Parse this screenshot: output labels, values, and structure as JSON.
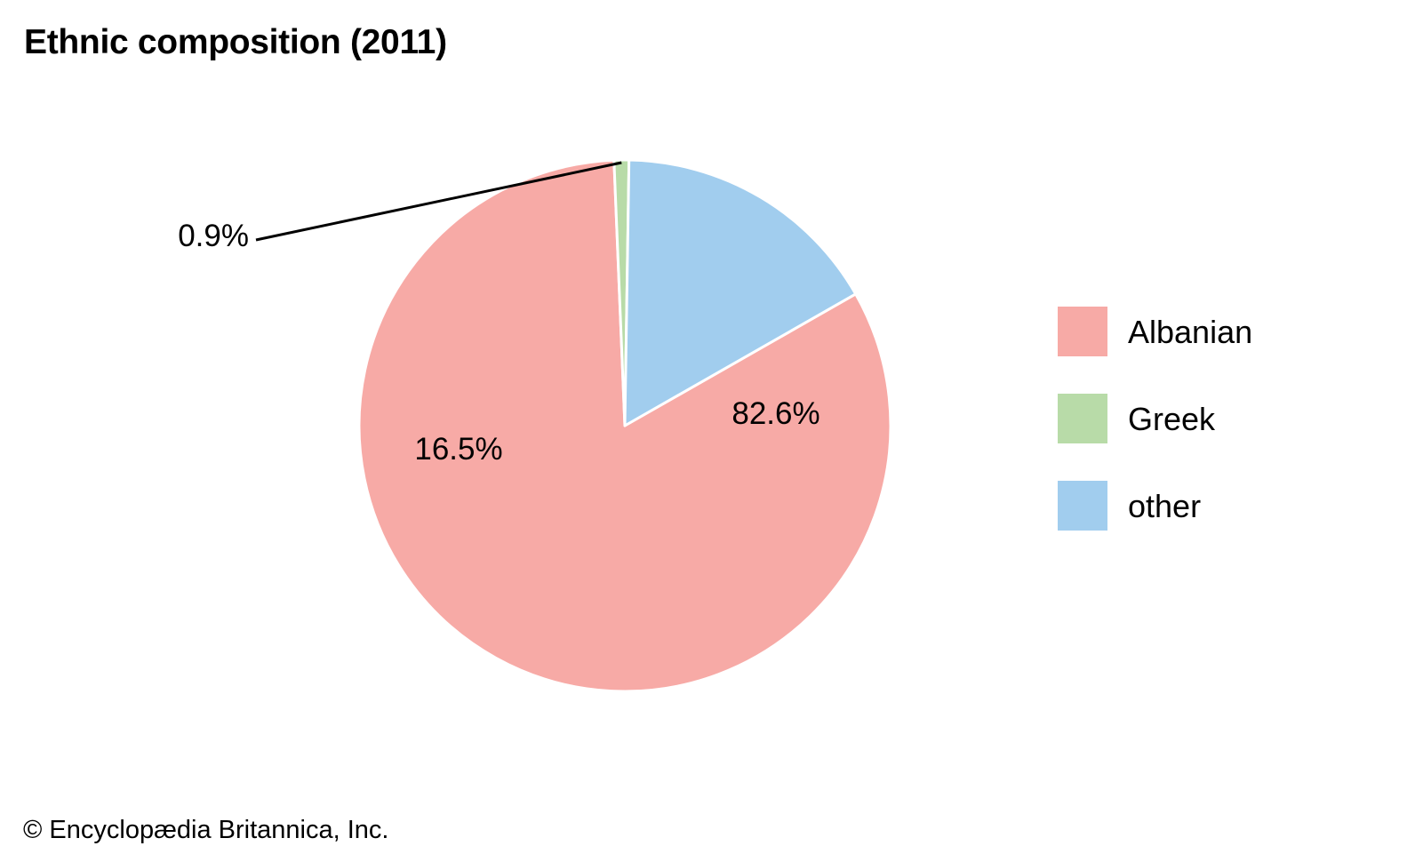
{
  "chart_data": {
    "type": "pie",
    "title": "Ethnic composition (2011)",
    "categories": [
      "Albanian",
      "Greek",
      "other"
    ],
    "values": [
      82.6,
      0.9,
      16.5
    ],
    "labels": [
      "82.6%",
      "0.9%",
      "16.5%"
    ],
    "colors": [
      "#f7aaa6",
      "#b8dba8",
      "#a1cdee"
    ],
    "legend": {
      "placement": "right",
      "entries": [
        "Albanian",
        "Greek",
        "other"
      ]
    },
    "slice_border_color": "#ffffff",
    "leader_line_color": "#000000"
  },
  "footer": {
    "credit": "© Encyclopædia Britannica, Inc."
  }
}
